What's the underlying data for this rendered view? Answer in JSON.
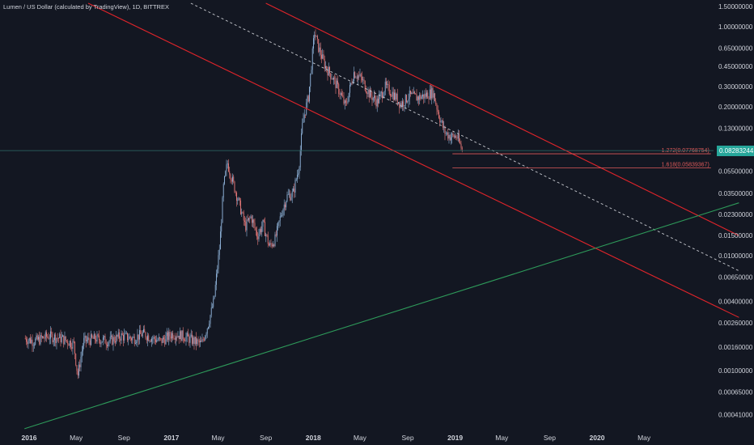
{
  "header": {
    "title": "Lumen / US Dollar (calculated by TradingView), 1D, BITTREX"
  },
  "price_tag": "0.08283244",
  "colors": {
    "background": "#131722",
    "channel": "#e0242a",
    "trendline_green": "#2e9a5a",
    "midline": "#c8cad0",
    "fib": "#e05a5a",
    "price_line": "#2e6e6a",
    "candle_up": "#8fb3d9",
    "candle_down": "#e87878",
    "tag": "#26a69a"
  },
  "chart_data": {
    "type": "candlestick",
    "title": "Lumen / US Dollar (calculated by TradingView), 1D, BITTREX",
    "y_scale": "log",
    "ylim": [
      0.00033,
      1.6
    ],
    "xlim": [
      "2016-01-01",
      "2020-12-31"
    ],
    "x_tick_labels": [
      "2016",
      "May",
      "Sep",
      "2017",
      "May",
      "Sep",
      "2018",
      "May",
      "Sep",
      "2019",
      "May",
      "Sep",
      "2020",
      "May"
    ],
    "x_tick_dates": [
      "2016-01-01",
      "2016-05-01",
      "2016-09-01",
      "2017-01-01",
      "2017-05-01",
      "2017-09-01",
      "2018-01-01",
      "2018-05-01",
      "2018-09-01",
      "2019-01-01",
      "2019-05-01",
      "2019-09-01",
      "2020-01-01",
      "2020-05-01"
    ],
    "y_tick_labels": [
      "1.50000000",
      "1.00000000",
      "0.65000000",
      "0.45000000",
      "0.30000000",
      "0.20000000",
      "0.13000000",
      "0.05500000",
      "0.03500000",
      "0.02300000",
      "0.01500000",
      "0.01000000",
      "0.00650000",
      "0.00400000",
      "0.00260000",
      "0.00160000",
      "0.00100000",
      "0.00065000",
      "0.00041000"
    ],
    "last_price": 0.08283244,
    "price_path": [
      [
        "2015-12-20",
        0.0019
      ],
      [
        "2016-01-15",
        0.0018
      ],
      [
        "2016-02-20",
        0.002
      ],
      [
        "2016-03-25",
        0.0019
      ],
      [
        "2016-04-25",
        0.0017
      ],
      [
        "2016-05-05",
        0.0009
      ],
      [
        "2016-05-20",
        0.0018
      ],
      [
        "2016-06-20",
        0.0019
      ],
      [
        "2016-07-25",
        0.0018
      ],
      [
        "2016-08-25",
        0.002
      ],
      [
        "2016-09-25",
        0.0019
      ],
      [
        "2016-10-20",
        0.0021
      ],
      [
        "2016-11-15",
        0.0019
      ],
      [
        "2016-12-05",
        0.0018
      ],
      [
        "2017-01-05",
        0.0021
      ],
      [
        "2017-02-01",
        0.002
      ],
      [
        "2017-03-01",
        0.0018
      ],
      [
        "2017-03-20",
        0.0017
      ],
      [
        "2017-04-05",
        0.0025
      ],
      [
        "2017-04-20",
        0.004
      ],
      [
        "2017-05-05",
        0.012
      ],
      [
        "2017-05-15",
        0.04
      ],
      [
        "2017-05-25",
        0.065
      ],
      [
        "2017-06-10",
        0.042
      ],
      [
        "2017-06-25",
        0.028
      ],
      [
        "2017-07-10",
        0.018
      ],
      [
        "2017-07-25",
        0.022
      ],
      [
        "2017-08-10",
        0.015
      ],
      [
        "2017-08-25",
        0.019
      ],
      [
        "2017-09-10",
        0.012
      ],
      [
        "2017-09-25",
        0.014
      ],
      [
        "2017-10-10",
        0.023
      ],
      [
        "2017-10-25",
        0.033
      ],
      [
        "2017-11-10",
        0.035
      ],
      [
        "2017-11-25",
        0.06
      ],
      [
        "2017-12-05",
        0.15
      ],
      [
        "2017-12-20",
        0.25
      ],
      [
        "2018-01-04",
        0.9
      ],
      [
        "2018-01-15",
        0.65
      ],
      [
        "2018-02-01",
        0.45
      ],
      [
        "2018-02-20",
        0.36
      ],
      [
        "2018-03-10",
        0.27
      ],
      [
        "2018-03-25",
        0.2
      ],
      [
        "2018-04-15",
        0.4
      ],
      [
        "2018-05-05",
        0.35
      ],
      [
        "2018-05-25",
        0.26
      ],
      [
        "2018-06-15",
        0.22
      ],
      [
        "2018-07-05",
        0.3
      ],
      [
        "2018-07-25",
        0.26
      ],
      [
        "2018-08-15",
        0.21
      ],
      [
        "2018-09-05",
        0.25
      ],
      [
        "2018-09-25",
        0.24
      ],
      [
        "2018-10-15",
        0.25
      ],
      [
        "2018-11-05",
        0.27
      ],
      [
        "2018-11-20",
        0.17
      ],
      [
        "2018-12-05",
        0.12
      ],
      [
        "2018-12-20",
        0.11
      ],
      [
        "2019-01-05",
        0.11
      ],
      [
        "2019-01-20",
        0.0828
      ]
    ],
    "lines": [
      {
        "name": "channel-upper",
        "p1": [
          "2017-09-01",
          1.6
        ],
        "p2": [
          "2020-12-31",
          0.015
        ]
      },
      {
        "name": "channel-lower",
        "p1": [
          "2016-06-01",
          1.6
        ],
        "p2": [
          "2020-12-31",
          0.0029
        ]
      },
      {
        "name": "midline-dashed",
        "p1": [
          "2017-02-20",
          1.6
        ],
        "p2": [
          "2020-12-31",
          0.0074
        ]
      },
      {
        "name": "trendline-green",
        "p1": [
          "2015-12-20",
          0.00031
        ],
        "p2": [
          "2020-12-31",
          0.029
        ]
      }
    ],
    "fib_levels": [
      {
        "label": "1.272(0.07768754)",
        "price": 0.07768754,
        "from": "2018-12-25",
        "to": "2020-10-20"
      },
      {
        "label": "1.618(0.05839367)",
        "price": 0.05839367,
        "from": "2018-12-25",
        "to": "2020-10-20"
      }
    ]
  }
}
